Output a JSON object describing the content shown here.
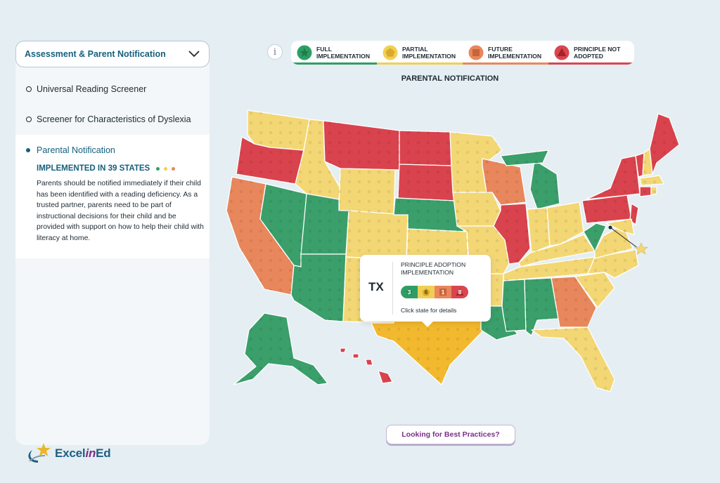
{
  "sidebar": {
    "dropdown_label": "Assessment & Parent Notification",
    "options": [
      {
        "label": "Universal Reading Screener"
      },
      {
        "label": "Screener for Characteristics of Dyslexia"
      }
    ],
    "active": {
      "label": "Parental Notification",
      "implemented": "IMPLEMENTED IN 39 STATES",
      "description": "Parents should be notified immediately if their child has been identified with a reading deficiency. As a trusted partner, parents need to be part of instructional decisions for their child and be provided with support on how to help their child with literacy at home."
    }
  },
  "legend": {
    "info_label": "i",
    "items": [
      {
        "label": "FULL IMPLEMENTATION",
        "color": "#2f9e65",
        "icon": "star-icon"
      },
      {
        "label": "PARTIAL IMPLEMENTATION",
        "color": "#f1cf55",
        "icon": "pentagon-icon"
      },
      {
        "label": "FUTURE IMPLEMENTATION",
        "color": "#e8875c",
        "icon": "square-icon"
      },
      {
        "label": "PRINCIPLE NOT ADOPTED",
        "color": "#d94650",
        "icon": "triangle-icon"
      }
    ]
  },
  "map_title": "PARENTAL NOTIFICATION",
  "colors": {
    "full": "#3a9f6a",
    "partial": "#f3d774",
    "future": "#e8875c",
    "not_adopted": "#d9434d",
    "selected": "#f2b82e",
    "brand_blue": "#16607e",
    "brand_purple": "#7b2f86"
  },
  "tooltip": {
    "state": "TX",
    "heading": "PRINCIPLE ADOPTION IMPLEMENTATION",
    "counts": [
      "3",
      "6",
      "1",
      "8"
    ],
    "click_text": "Click state for details"
  },
  "best_practices_label": "Looking for Best Practices?",
  "logo": {
    "part1": "Excel",
    "part2": "in",
    "part3": "Ed"
  }
}
